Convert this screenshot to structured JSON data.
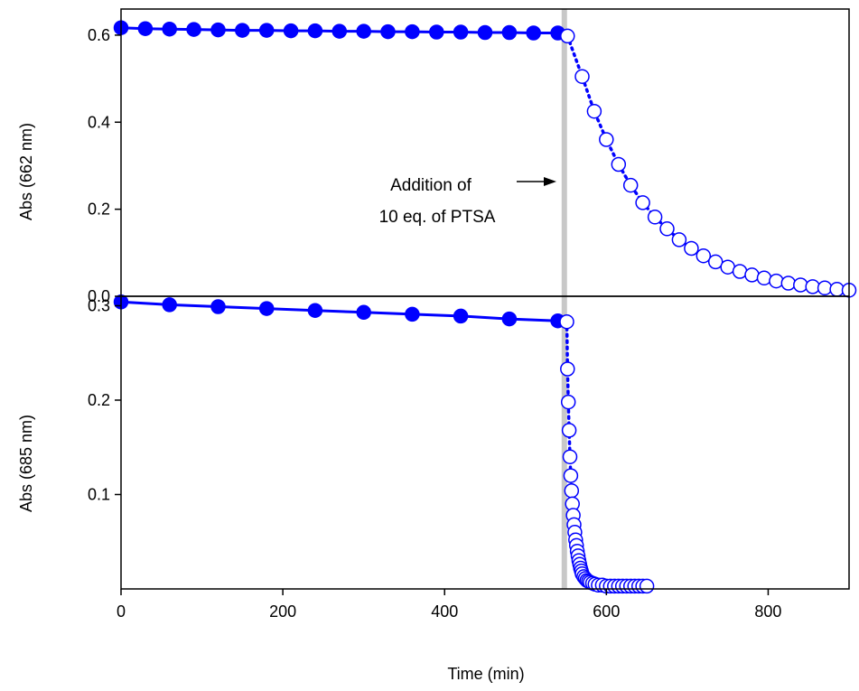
{
  "chart_data": [
    {
      "type": "scatter",
      "panel": "top",
      "ylabel": "Abs (662 nm)",
      "xlim": [
        0,
        900
      ],
      "ylim": [
        0,
        0.66
      ],
      "yticks": [
        "0.0",
        "0.2",
        "0.4",
        "0.6"
      ],
      "yticks_values": [
        0,
        0.2,
        0.4,
        0.6
      ],
      "annotation": {
        "line1": "Addition of",
        "line2": "10 eq. of PTSA",
        "x": 548
      },
      "series": [
        {
          "style": "filled-solid",
          "color": "#0000ff",
          "x": [
            0,
            30,
            60,
            90,
            120,
            150,
            180,
            210,
            240,
            270,
            300,
            330,
            360,
            390,
            420,
            450,
            480,
            510,
            540
          ],
          "y": [
            0.617,
            0.615,
            0.614,
            0.613,
            0.612,
            0.611,
            0.611,
            0.61,
            0.61,
            0.609,
            0.609,
            0.608,
            0.608,
            0.607,
            0.607,
            0.606,
            0.606,
            0.605,
            0.605
          ]
        },
        {
          "style": "open-dotted",
          "color": "#0000ff",
          "x": [
            552,
            570,
            585,
            600,
            615,
            630,
            645,
            660,
            675,
            690,
            705,
            720,
            735,
            750,
            765,
            780,
            795,
            810,
            825,
            840,
            855,
            870,
            885,
            900
          ],
          "y": [
            0.598,
            0.505,
            0.425,
            0.36,
            0.303,
            0.255,
            0.215,
            0.182,
            0.155,
            0.13,
            0.11,
            0.093,
            0.079,
            0.067,
            0.057,
            0.049,
            0.042,
            0.035,
            0.03,
            0.026,
            0.022,
            0.019,
            0.016,
            0.014
          ]
        }
      ]
    },
    {
      "type": "scatter",
      "panel": "bottom",
      "xlabel": "Time (min)",
      "ylabel": "Abs (685 nm)",
      "xlim": [
        0,
        900
      ],
      "ylim": [
        0,
        0.31
      ],
      "xticks": [
        "0",
        "200",
        "400",
        "600",
        "800"
      ],
      "xticks_values": [
        0,
        200,
        400,
        600,
        800
      ],
      "yticks": [
        "0.1",
        "0.2",
        "0.3"
      ],
      "yticks_values": [
        0.1,
        0.2,
        0.3
      ],
      "series": [
        {
          "style": "filled-solid",
          "color": "#0000ff",
          "x": [
            0,
            60,
            120,
            180,
            240,
            300,
            360,
            420,
            480,
            540
          ],
          "y": [
            0.304,
            0.301,
            0.299,
            0.297,
            0.295,
            0.293,
            0.291,
            0.289,
            0.286,
            0.284
          ]
        },
        {
          "style": "open-dotted",
          "color": "#0000ff",
          "x": [
            551,
            552,
            553,
            554,
            555,
            556,
            557,
            558,
            559,
            560,
            561,
            562,
            563,
            564,
            565,
            566,
            567,
            568,
            569,
            570,
            572,
            574,
            576,
            578,
            580,
            583,
            586,
            590,
            595,
            600,
            605,
            610,
            615,
            620,
            625,
            630,
            635,
            640,
            645,
            650
          ],
          "y": [
            0.283,
            0.233,
            0.198,
            0.168,
            0.14,
            0.12,
            0.104,
            0.09,
            0.078,
            0.068,
            0.06,
            0.052,
            0.046,
            0.04,
            0.035,
            0.03,
            0.026,
            0.022,
            0.019,
            0.016,
            0.013,
            0.011,
            0.009,
            0.008,
            0.007,
            0.006,
            0.005,
            0.004,
            0.004,
            0.003,
            0.003,
            0.003,
            0.003,
            0.003,
            0.003,
            0.003,
            0.003,
            0.003,
            0.003,
            0.003
          ]
        }
      ]
    }
  ]
}
